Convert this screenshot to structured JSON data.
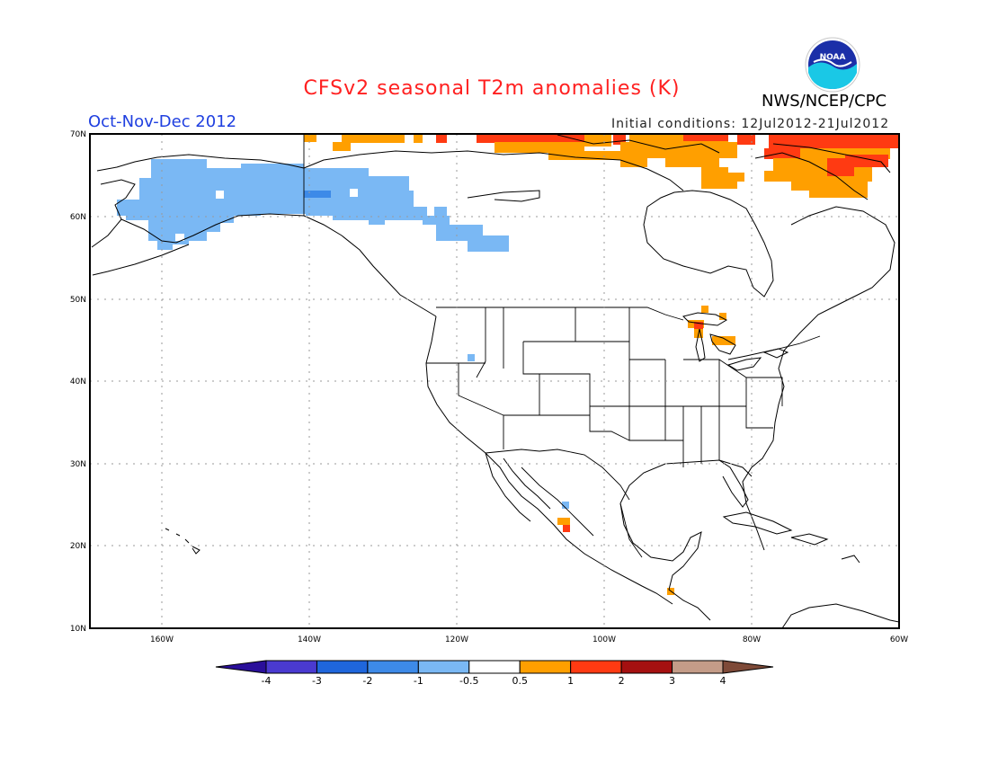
{
  "title": "CFSv2 seasonal T2m anomalies (K)",
  "season": "Oct-Nov-Dec 2012",
  "initial_conditions": "Initial conditions: 12Jul2012-21Jul2012",
  "agency": "NWS/NCEP/CPC",
  "logo_text": "NOAA",
  "lat_labels": [
    "70N",
    "60N",
    "50N",
    "40N",
    "30N",
    "20N",
    "10N"
  ],
  "lon_labels": [
    "160W",
    "140W",
    "120W",
    "100W",
    "80W",
    "60W"
  ],
  "colorbar": {
    "labels": [
      "-4",
      "-3",
      "-2",
      "-1",
      "-0.5",
      "0.5",
      "1",
      "2",
      "3",
      "4"
    ],
    "colors": [
      "#2a0f9a",
      "#4a3ad0",
      "#1f66dc",
      "#3d8ae8",
      "#7ab8f4",
      "#ffffff",
      "#ff9f00",
      "#ff3a12",
      "#a51010",
      "#c49c88",
      "#7e4a38"
    ]
  }
}
